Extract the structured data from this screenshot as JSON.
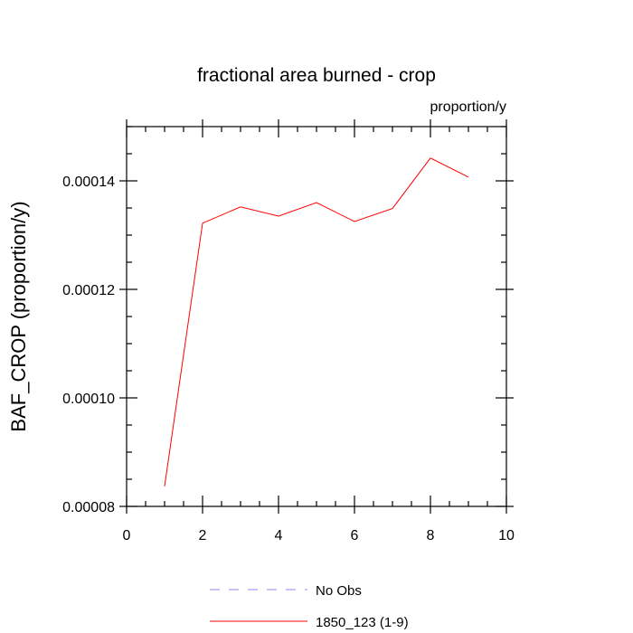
{
  "chart_data": {
    "type": "line",
    "title": "fractional area burned - crop",
    "units_label": "proportion/y",
    "ylabel": "BAF_CROP  (proportion/y)",
    "xlabel": "",
    "xlim": [
      0,
      10
    ],
    "ylim": [
      8e-05,
      0.00015
    ],
    "x_ticks": [
      0,
      2,
      4,
      6,
      8,
      10
    ],
    "x_tick_labels": [
      "0",
      "2",
      "4",
      "6",
      "8",
      "10"
    ],
    "y_ticks": [
      8e-05,
      0.0001,
      0.00012,
      0.00014
    ],
    "y_tick_labels": [
      "0.00008",
      "0.00010",
      "0.00012",
      "0.00014"
    ],
    "grid": false,
    "legend_position": "bottom",
    "series": [
      {
        "name": "No Obs",
        "color": "#8a8af0",
        "dash": "dashed",
        "x": [],
        "y": []
      },
      {
        "name": "1850_123 (1-9)",
        "color": "#ff0000",
        "dash": "solid",
        "x": [
          1,
          2,
          3,
          4,
          5,
          6,
          7,
          8,
          9
        ],
        "y": [
          8.37e-05,
          0.0001322,
          0.0001352,
          0.0001335,
          0.000136,
          0.0001325,
          0.0001349,
          0.0001442,
          0.0001407
        ]
      }
    ]
  }
}
